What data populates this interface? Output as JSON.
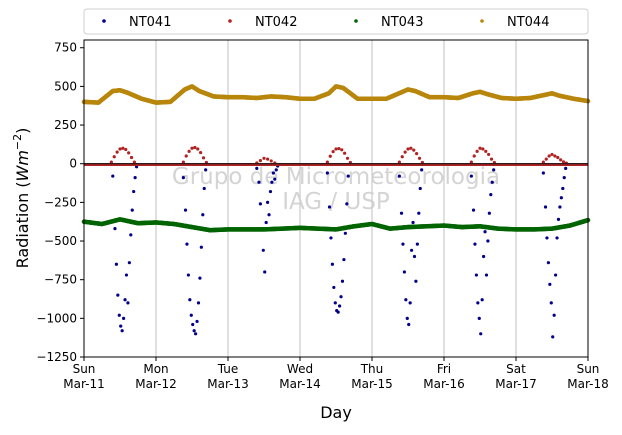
{
  "chart_data": {
    "type": "scatter",
    "title": "",
    "xlabel": "Day",
    "ylabel_main": "Radiation (",
    "ylabel_unit": "Wm",
    "ylabel_exp": "−2",
    "ylabel_close": ")",
    "ylim": [
      -1250,
      800
    ],
    "yticks": [
      -1250,
      -1000,
      -750,
      -500,
      -250,
      0,
      250,
      500,
      750
    ],
    "ytick_labels": [
      "−1250",
      "−1000",
      "−750",
      "−500",
      "−250",
      "0",
      "250",
      "500",
      "750"
    ],
    "xlim_days": [
      0,
      7
    ],
    "xticks": [
      {
        "day": 0,
        "line1": "Sun",
        "line2": "Mar-11"
      },
      {
        "day": 1,
        "line1": "Mon",
        "line2": "Mar-12"
      },
      {
        "day": 2,
        "line1": "Tue",
        "line2": "Mar-13"
      },
      {
        "day": 3,
        "line1": "Wed",
        "line2": "Mar-14"
      },
      {
        "day": 4,
        "line1": "Thu",
        "line2": "Mar-15"
      },
      {
        "day": 5,
        "line1": "Fri",
        "line2": "Mar-16"
      },
      {
        "day": 6,
        "line1": "Sat",
        "line2": "Mar-17"
      },
      {
        "day": 7,
        "line1": "Sun",
        "line2": "Mar-18"
      }
    ],
    "grid": "vertical",
    "legend_placement": "top",
    "watermark_line1": "Grupo de Micrometeorologia",
    "watermark_line2": "IAG / USP",
    "series": [
      {
        "name": "NT041",
        "color": "#00008b",
        "x": [
          0.4,
          0.43,
          0.45,
          0.47,
          0.49,
          0.51,
          0.53,
          0.55,
          0.57,
          0.59,
          0.61,
          0.63,
          0.65,
          0.67,
          0.69,
          0.71,
          0.73,
          1.38,
          1.41,
          1.43,
          1.45,
          1.47,
          1.49,
          1.51,
          1.53,
          1.55,
          1.57,
          1.59,
          1.61,
          1.63,
          1.65,
          1.67,
          1.69,
          2.4,
          2.43,
          2.45,
          2.47,
          2.49,
          2.51,
          2.53,
          2.55,
          2.57,
          2.59,
          2.61,
          2.63,
          2.65,
          2.67,
          2.69,
          3.38,
          3.41,
          3.43,
          3.45,
          3.47,
          3.49,
          3.51,
          3.53,
          3.55,
          3.57,
          3.59,
          3.61,
          3.63,
          3.65,
          3.67,
          4.38,
          4.41,
          4.43,
          4.45,
          4.47,
          4.49,
          4.51,
          4.53,
          4.55,
          4.57,
          4.59,
          4.61,
          4.63,
          4.65,
          4.67,
          4.69,
          5.38,
          5.41,
          5.43,
          5.45,
          5.47,
          5.49,
          5.51,
          5.53,
          5.55,
          5.57,
          5.59,
          5.61,
          5.63,
          5.65,
          5.67,
          5.69,
          6.38,
          6.41,
          6.43,
          6.45,
          6.47,
          6.49,
          6.51,
          6.53,
          6.55,
          6.57,
          6.59,
          6.61,
          6.63,
          6.65,
          6.67,
          6.69
        ],
        "y": [
          -80,
          -420,
          -650,
          -850,
          -980,
          -1050,
          -1080,
          -1000,
          -880,
          -720,
          -900,
          -640,
          -460,
          -300,
          -180,
          -90,
          -20,
          -90,
          -300,
          -520,
          -720,
          -880,
          -980,
          -1040,
          -1080,
          -1100,
          -1020,
          -900,
          -740,
          -540,
          -330,
          -160,
          -40,
          -30,
          -120,
          -260,
          -420,
          -560,
          -700,
          -380,
          -250,
          -330,
          -180,
          -120,
          -60,
          -100,
          -40,
          -15,
          -60,
          -280,
          -480,
          -650,
          -800,
          -900,
          -950,
          -960,
          -920,
          -860,
          -760,
          -620,
          -450,
          -260,
          -80,
          -80,
          -320,
          -520,
          -700,
          -880,
          -1000,
          -1040,
          -900,
          -560,
          -380,
          -600,
          -760,
          -520,
          -320,
          -160,
          -40,
          -80,
          -300,
          -520,
          -720,
          -900,
          -1000,
          -1100,
          -880,
          -600,
          -440,
          -720,
          -500,
          -320,
          -200,
          -120,
          -40,
          -60,
          -280,
          -480,
          -640,
          -780,
          -900,
          -1120,
          -980,
          -720,
          -480,
          -360,
          -280,
          -220,
          -160,
          -90,
          -30
        ]
      },
      {
        "name": "NT042",
        "color": "#b22222",
        "x": [
          0.38,
          0.42,
          0.46,
          0.5,
          0.54,
          0.58,
          0.62,
          0.66,
          0.7,
          1.38,
          1.42,
          1.46,
          1.5,
          1.54,
          1.58,
          1.62,
          1.66,
          1.7,
          2.4,
          2.45,
          2.5,
          2.55,
          2.6,
          2.65,
          3.38,
          3.42,
          3.46,
          3.5,
          3.54,
          3.58,
          3.62,
          3.66,
          3.7,
          4.38,
          4.42,
          4.46,
          4.5,
          4.54,
          4.58,
          4.62,
          4.66,
          4.7,
          5.38,
          5.42,
          5.46,
          5.5,
          5.54,
          5.58,
          5.62,
          5.66,
          5.7,
          6.38,
          6.42,
          6.46,
          6.5,
          6.54,
          6.58,
          6.62,
          6.66,
          6.7
        ],
        "y": [
          10,
          45,
          75,
          95,
          100,
          92,
          70,
          40,
          10,
          10,
          50,
          80,
          100,
          105,
          95,
          72,
          38,
          8,
          5,
          20,
          35,
          30,
          18,
          5,
          10,
          48,
          78,
          95,
          98,
          90,
          68,
          35,
          8,
          10,
          45,
          75,
          95,
          100,
          88,
          65,
          35,
          8,
          10,
          50,
          80,
          100,
          95,
          80,
          60,
          30,
          8,
          10,
          30,
          50,
          60,
          50,
          40,
          25,
          12,
          4
        ],
        "baseline": -5
      },
      {
        "name": "NT043",
        "color": "#006400",
        "x": [
          0.0,
          0.25,
          0.5,
          0.75,
          1.0,
          1.25,
          1.5,
          1.75,
          2.0,
          2.25,
          2.5,
          2.75,
          3.0,
          3.25,
          3.5,
          3.75,
          4.0,
          4.25,
          4.5,
          4.75,
          5.0,
          5.25,
          5.5,
          5.75,
          6.0,
          6.25,
          6.5,
          6.75,
          7.0
        ],
        "y": [
          -375,
          -390,
          -360,
          -385,
          -380,
          -390,
          -410,
          -430,
          -425,
          -425,
          -425,
          -420,
          -415,
          -420,
          -425,
          -405,
          -390,
          -420,
          -410,
          -405,
          -400,
          -410,
          -405,
          -420,
          -425,
          -425,
          -420,
          -400,
          -365
        ]
      },
      {
        "name": "NT044",
        "color": "#b8860b",
        "x": [
          0.0,
          0.2,
          0.4,
          0.5,
          0.6,
          0.8,
          1.0,
          1.2,
          1.4,
          1.5,
          1.6,
          1.8,
          2.0,
          2.2,
          2.4,
          2.6,
          2.8,
          3.0,
          3.2,
          3.4,
          3.5,
          3.6,
          3.8,
          4.0,
          4.2,
          4.4,
          4.5,
          4.6,
          4.8,
          5.0,
          5.2,
          5.4,
          5.5,
          5.6,
          5.8,
          6.0,
          6.2,
          6.4,
          6.5,
          6.6,
          6.8,
          7.0
        ],
        "y": [
          400,
          395,
          470,
          475,
          460,
          420,
          395,
          400,
          480,
          500,
          470,
          435,
          430,
          430,
          425,
          435,
          430,
          420,
          420,
          455,
          500,
          490,
          420,
          420,
          420,
          460,
          480,
          470,
          430,
          430,
          425,
          455,
          465,
          450,
          425,
          420,
          425,
          445,
          455,
          440,
          420,
          405
        ]
      }
    ]
  }
}
